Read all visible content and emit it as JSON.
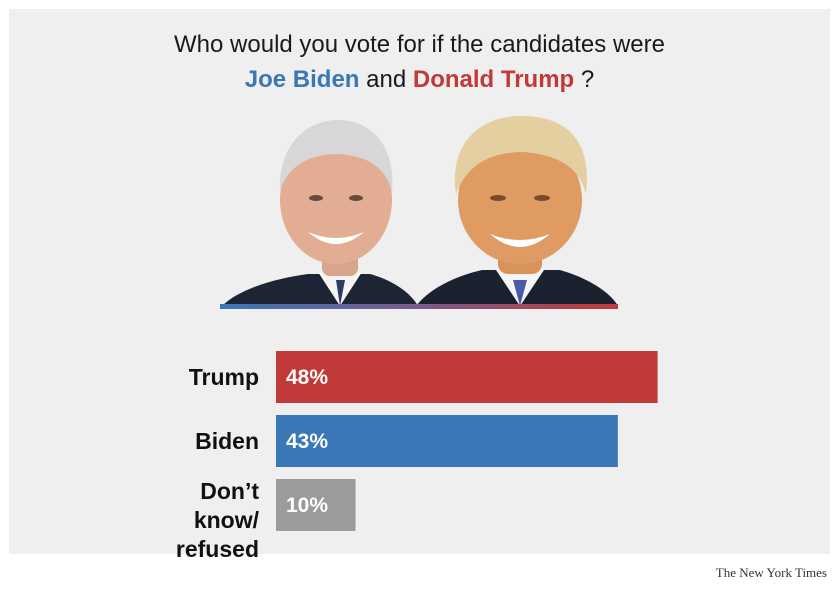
{
  "header": {
    "question_prefix": "Who would you vote for if the candidates were",
    "candidate_a": "Joe Biden",
    "connector": "and",
    "candidate_b": "Donald Trump",
    "question_suffix": "?"
  },
  "source": "The New York Times",
  "colors": {
    "trump": "#c23a37",
    "biden": "#3a77b7",
    "undecided": "#9b9b9b",
    "background": "#efefef"
  },
  "chart_data": {
    "type": "bar",
    "orientation": "horizontal",
    "categories": [
      "Trump",
      "Biden",
      "Don’t know/ refused"
    ],
    "values": [
      48,
      43,
      10
    ],
    "value_labels": [
      "48%",
      "43%",
      "10%"
    ],
    "bar_colors": [
      "#c23a37",
      "#3a77b7",
      "#9b9b9b"
    ],
    "xlim": [
      0,
      100
    ],
    "grid": false,
    "legend": "none"
  }
}
